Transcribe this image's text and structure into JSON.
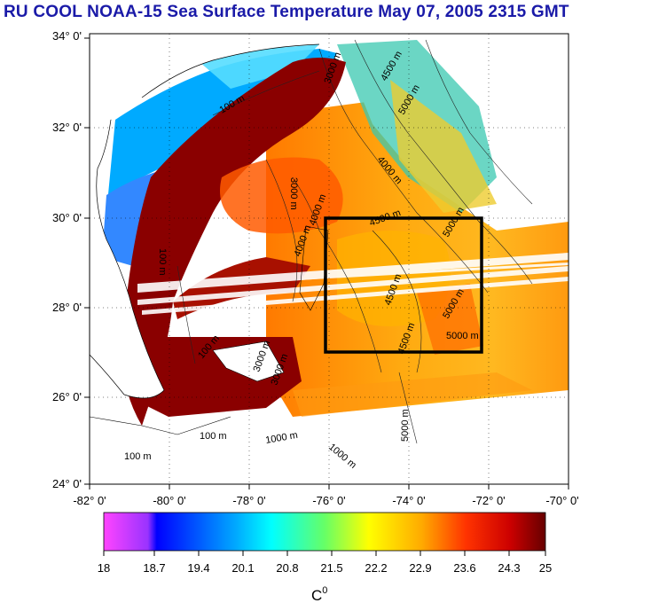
{
  "title": "RU COOL  NOAA-15 Sea Surface Temperature May 07, 2005 2315 GMT",
  "latitude_ticks": [
    "34° 0'",
    "32° 0'",
    "30° 0'",
    "28° 0'",
    "26° 0'",
    "24° 0'"
  ],
  "longitude_ticks": [
    "-82° 0'",
    "-80° 0'",
    "-78° 0'",
    "-76° 0'",
    "-74° 0'",
    "-72° 0'",
    "-70° 0'"
  ],
  "contour_labels": [
    "100 m",
    "100 m",
    "100 m",
    "100 m",
    "100 m",
    "3000 m",
    "3000 m",
    "3000 m",
    "4000 m",
    "4000 m",
    "4000 m",
    "4500 m",
    "4500 m",
    "4500 m",
    "4500 m",
    "5000 m",
    "5000 m",
    "5000 m",
    "5000 m",
    "5000 m",
    "3000 m",
    "1000 m",
    "1000 m"
  ],
  "box": {
    "lon_min": -76,
    "lon_max": -72,
    "lat_min": 27,
    "lat_max": 30
  },
  "colorbar": {
    "ticks": [
      "18",
      "18.7",
      "19.4",
      "20.1",
      "20.8",
      "21.5",
      "22.2",
      "22.9",
      "23.6",
      "24.3",
      "25"
    ],
    "unit_label": "C",
    "unit_superscript": "0",
    "colors": [
      "#ff55ff",
      "#0000ff",
      "#00aaff",
      "#00ffff",
      "#66ff88",
      "#ffff00",
      "#ffaa00",
      "#ff4400",
      "#cc0000",
      "#660000"
    ]
  }
}
